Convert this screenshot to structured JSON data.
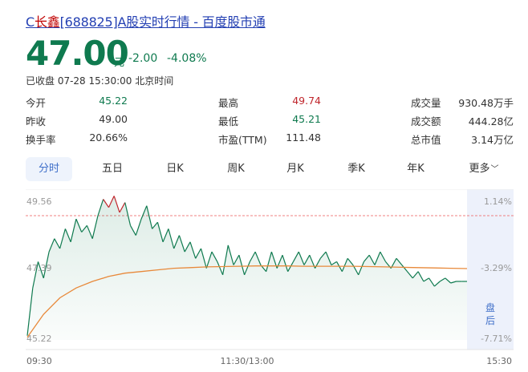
{
  "header": {
    "title_prefix": "C",
    "title_highlight": "长鑫",
    "title_suffix": "[688825]A股实时行情 - 百度股市通"
  },
  "quote": {
    "price": "47.00",
    "unit": "元",
    "change": "-2.00",
    "change_pct": "-4.08%",
    "status": "已收盘 07-28 15:30:00 北京时间"
  },
  "stats": [
    {
      "label": "今开",
      "value": "45.22",
      "color": "#0f7a4f"
    },
    {
      "label": "最高",
      "value": "49.74",
      "color": "#c0272d"
    },
    {
      "label": "成交量",
      "value": "930.48万手",
      "color": "#333333"
    },
    {
      "label": "昨收",
      "value": "49.00",
      "color": "#333333"
    },
    {
      "label": "最低",
      "value": "45.21",
      "color": "#0f7a4f"
    },
    {
      "label": "成交额",
      "value": "444.28亿",
      "color": "#333333"
    },
    {
      "label": "换手率",
      "value": "20.66%",
      "color": "#333333"
    },
    {
      "label": "市盈(TTM)",
      "value": "111.48",
      "color": "#333333"
    },
    {
      "label": "总市值",
      "value": "3.14万亿",
      "color": "#333333"
    }
  ],
  "tabs": [
    {
      "label": "分时",
      "active": true
    },
    {
      "label": "五日",
      "active": false
    },
    {
      "label": "日K",
      "active": false
    },
    {
      "label": "周K",
      "active": false
    },
    {
      "label": "月K",
      "active": false
    },
    {
      "label": "季K",
      "active": false
    },
    {
      "label": "年K",
      "active": false
    },
    {
      "label": "更多",
      "active": false
    }
  ],
  "chart": {
    "y_labels_left": [
      "49.56",
      "47.39",
      "45.22"
    ],
    "y_labels_right": [
      "1.14%",
      "-3.29%",
      "-7.71%"
    ],
    "x_labels": [
      "09:30",
      "11:30/13:00",
      "15:30"
    ],
    "after_hours_label_1": "盘",
    "after_hours_label_2": "后",
    "colors": {
      "down": "#0f7a4f",
      "up": "#c0272d",
      "average": "#e8893a",
      "prev_close": "#f08080",
      "after_hours_bg": "#edf1fb"
    }
  },
  "chart_data": {
    "type": "line",
    "y_range": [
      45.22,
      49.56
    ],
    "prev_close": 49.0,
    "x_labels": [
      "09:30",
      "11:30/13:00",
      "15:30"
    ],
    "series": [
      {
        "values": [
          45.35,
          46.8,
          47.6,
          47.1,
          47.9,
          48.3,
          48.0,
          48.6,
          48.2,
          48.9,
          48.5,
          48.7,
          48.3,
          49.0,
          49.5,
          49.25,
          49.6,
          49.1,
          49.4,
          48.7,
          48.4,
          48.9,
          49.3,
          48.6,
          48.8,
          48.2,
          48.6,
          48.0,
          48.4,
          47.9,
          48.2,
          47.7,
          48.0,
          47.4,
          47.9,
          47.6,
          47.2,
          48.1,
          47.5,
          47.8,
          47.2,
          47.6,
          47.9,
          47.5,
          47.3,
          47.9,
          47.4,
          47.8,
          47.3,
          47.6,
          47.9,
          47.5,
          47.8,
          47.4,
          47.7,
          47.9,
          47.5,
          47.6,
          47.3,
          47.7,
          47.5,
          47.2,
          47.6,
          47.8,
          47.5,
          47.9,
          47.6,
          47.4,
          47.7,
          47.5,
          47.3,
          47.1,
          47.3,
          47.0,
          47.1,
          46.85,
          47.0,
          47.1,
          46.95,
          47.0,
          47.0,
          47.0
        ]
      },
      {
        "values": [
          45.3,
          46.0,
          46.5,
          46.8,
          47.0,
          47.15,
          47.25,
          47.3,
          47.35,
          47.4,
          47.42,
          47.44,
          47.45,
          47.46,
          47.47,
          47.47,
          47.47,
          47.46,
          47.46,
          47.46,
          47.46,
          47.45,
          47.44,
          47.43,
          47.42,
          47.41,
          47.4,
          47.39
        ]
      }
    ]
  }
}
